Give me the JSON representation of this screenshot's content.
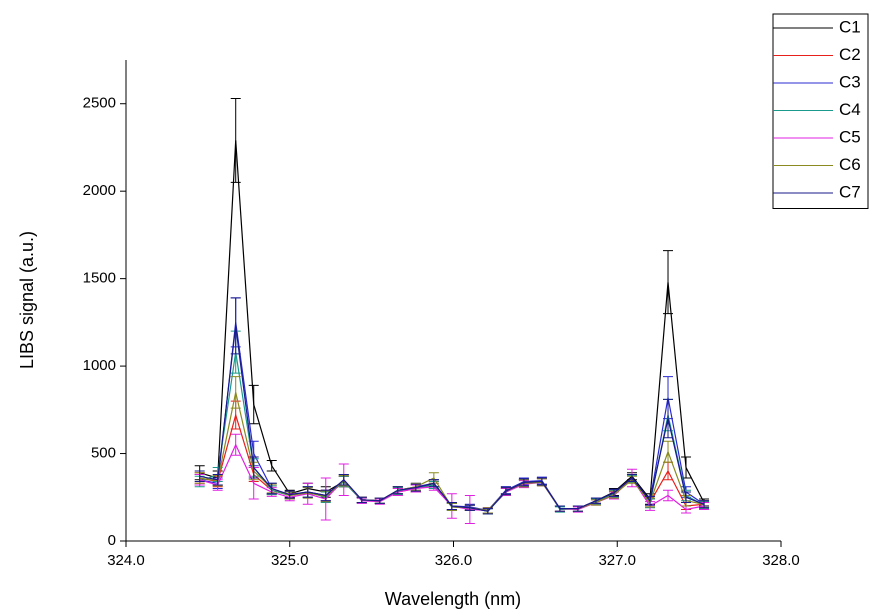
{
  "chart_data": {
    "type": "line",
    "xlabel": "Wavelength (nm)",
    "ylabel": "LIBS signal (a.u.)",
    "xlim": [
      324,
      328
    ],
    "xticks": [
      {
        "value": 324,
        "label": "324.0"
      },
      {
        "value": 325,
        "label": "325.0"
      },
      {
        "value": 326,
        "label": "326.0"
      },
      {
        "value": 327,
        "label": "327.0"
      },
      {
        "value": 328,
        "label": "328.0"
      }
    ],
    "ylim": [
      0,
      2750
    ],
    "yticks": [
      0,
      500,
      1000,
      1500,
      2000,
      2500
    ],
    "legend": "top-right",
    "x": [
      324.45,
      324.56,
      324.67,
      324.78,
      324.89,
      325.0,
      325.11,
      325.22,
      325.33,
      325.44,
      325.55,
      325.66,
      325.77,
      325.88,
      325.99,
      326.1,
      326.21,
      326.32,
      326.43,
      326.54,
      326.65,
      326.76,
      326.87,
      326.98,
      327.09,
      327.2,
      327.31,
      327.42,
      327.53
    ],
    "series": [
      {
        "name": "C1",
        "color": "#000000",
        "values": [
          390,
          360,
          2290,
          780,
          430,
          270,
          300,
          280,
          340,
          235,
          230,
          290,
          300,
          330,
          195,
          190,
          170,
          290,
          330,
          340,
          185,
          185,
          230,
          280,
          370,
          240,
          1480,
          420,
          220
        ],
        "errors": [
          40,
          40,
          240,
          110,
          30,
          20,
          30,
          30,
          30,
          15,
          15,
          20,
          20,
          20,
          20,
          15,
          15,
          20,
          20,
          20,
          15,
          15,
          15,
          20,
          20,
          30,
          180,
          60,
          20
        ]
      },
      {
        "name": "C2",
        "color": "#e8201c",
        "values": [
          360,
          340,
          720,
          380,
          290,
          260,
          280,
          260,
          340,
          235,
          230,
          280,
          300,
          320,
          200,
          190,
          175,
          280,
          330,
          340,
          185,
          185,
          230,
          270,
          360,
          220,
          400,
          200,
          210
        ],
        "errors": [
          30,
          30,
          80,
          40,
          25,
          20,
          30,
          30,
          30,
          15,
          15,
          20,
          20,
          20,
          20,
          15,
          15,
          20,
          20,
          20,
          15,
          15,
          15,
          20,
          20,
          25,
          50,
          20,
          20
        ]
      },
      {
        "name": "C3",
        "color": "#2a2ad0",
        "values": [
          350,
          330,
          1250,
          500,
          300,
          265,
          280,
          260,
          350,
          235,
          230,
          290,
          310,
          330,
          200,
          195,
          175,
          290,
          340,
          345,
          185,
          185,
          230,
          275,
          360,
          230,
          820,
          280,
          210
        ],
        "errors": [
          30,
          30,
          140,
          70,
          30,
          20,
          30,
          30,
          30,
          15,
          15,
          20,
          20,
          20,
          20,
          15,
          15,
          20,
          20,
          20,
          15,
          15,
          15,
          20,
          20,
          25,
          120,
          30,
          20
        ]
      },
      {
        "name": "C4",
        "color": "#1a9a8a",
        "values": [
          340,
          380,
          1080,
          420,
          290,
          260,
          280,
          250,
          340,
          230,
          230,
          285,
          305,
          320,
          195,
          190,
          170,
          280,
          330,
          340,
          180,
          185,
          225,
          270,
          355,
          215,
          720,
          260,
          205
        ],
        "errors": [
          30,
          40,
          120,
          50,
          25,
          20,
          30,
          30,
          30,
          15,
          15,
          20,
          20,
          20,
          20,
          15,
          15,
          20,
          20,
          20,
          15,
          15,
          15,
          20,
          20,
          25,
          90,
          30,
          20
        ]
      },
      {
        "name": "C5",
        "color": "#e020e0",
        "values": [
          350,
          320,
          550,
          330,
          280,
          250,
          270,
          240,
          350,
          230,
          225,
          280,
          300,
          310,
          200,
          180,
          175,
          280,
          325,
          335,
          185,
          180,
          220,
          260,
          360,
          200,
          260,
          180,
          200
        ],
        "errors": [
          30,
          30,
          60,
          90,
          25,
          20,
          60,
          120,
          90,
          15,
          15,
          20,
          20,
          20,
          70,
          80,
          15,
          20,
          20,
          20,
          15,
          15,
          15,
          20,
          50,
          25,
          30,
          20,
          20
        ]
      },
      {
        "name": "C6",
        "color": "#8a8a20",
        "values": [
          360,
          345,
          850,
          400,
          300,
          260,
          275,
          255,
          345,
          235,
          230,
          290,
          310,
          360,
          195,
          190,
          175,
          285,
          330,
          335,
          185,
          185,
          220,
          265,
          350,
          220,
          510,
          230,
          210
        ],
        "errors": [
          30,
          30,
          90,
          50,
          25,
          20,
          30,
          30,
          30,
          15,
          15,
          20,
          20,
          30,
          20,
          15,
          15,
          20,
          20,
          20,
          15,
          15,
          15,
          20,
          20,
          25,
          60,
          30,
          20
        ]
      },
      {
        "name": "C7",
        "color": "#1a1a8a",
        "values": [
          370,
          350,
          1230,
          420,
          300,
          265,
          280,
          260,
          350,
          235,
          230,
          290,
          305,
          330,
          200,
          190,
          170,
          285,
          335,
          340,
          185,
          185,
          230,
          275,
          360,
          230,
          700,
          250,
          210
        ],
        "errors": [
          30,
          30,
          160,
          60,
          30,
          20,
          30,
          30,
          30,
          15,
          15,
          20,
          20,
          20,
          20,
          15,
          15,
          20,
          20,
          20,
          15,
          15,
          15,
          20,
          20,
          25,
          110,
          30,
          20
        ]
      }
    ]
  }
}
